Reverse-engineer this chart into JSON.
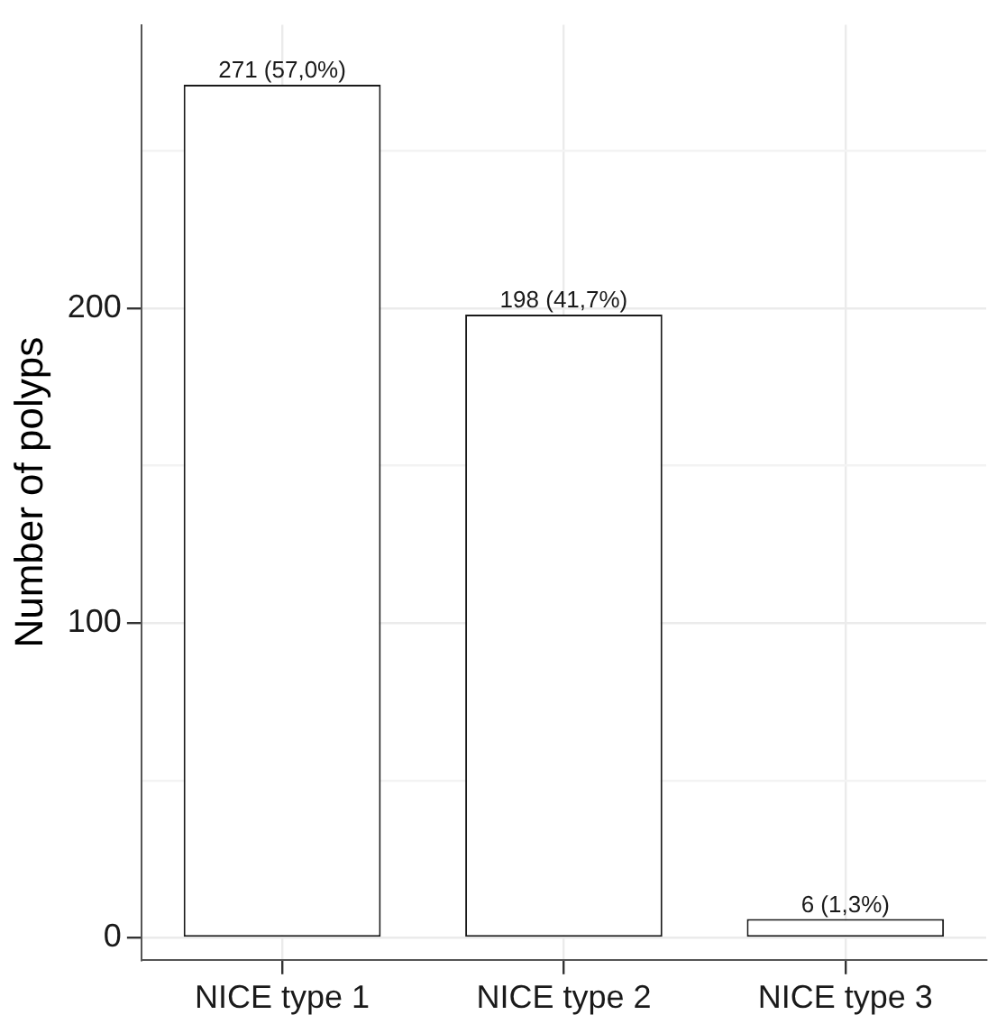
{
  "chart_data": {
    "type": "bar",
    "ylabel": "Number of polyps",
    "categories": [
      "NICE type 1",
      "NICE type 2",
      "NICE type 3"
    ],
    "values": [
      271,
      198,
      6
    ],
    "value_labels": [
      "271 (57,0%)",
      "198 (41,7%)",
      "6 (1,3%)"
    ],
    "color": "#ffffff",
    "ylim": [
      -7,
      290
    ],
    "yticks": [
      0,
      {
        "value": 50,
        "label": null
      },
      100,
      {
        "value": 150,
        "label": null
      },
      200,
      {
        "value": 250,
        "label": null
      }
    ],
    "grid": true
  }
}
